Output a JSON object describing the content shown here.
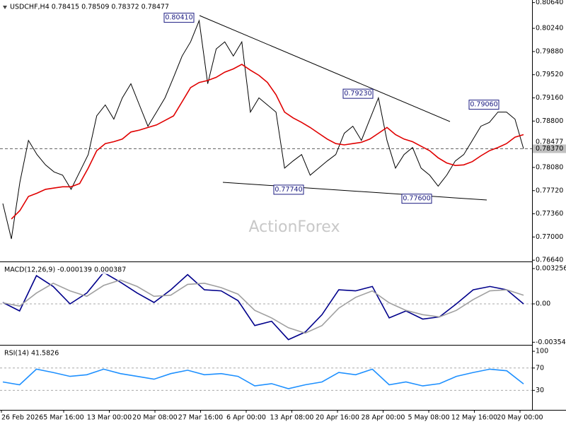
{
  "chart_data": [
    {
      "type": "line",
      "title": "USDCHF,H4  0.78415 0.78509 0.78372 0.78477",
      "watermark": "ActionForex",
      "ylim": [
        0.7662,
        0.8068
      ],
      "yticks": [
        {
          "value": 0.8064,
          "label": "0.80640"
        },
        {
          "value": 0.8024,
          "label": "0.80240"
        },
        {
          "value": 0.7988,
          "label": "0.79880"
        },
        {
          "value": 0.7952,
          "label": "0.79520"
        },
        {
          "value": 0.7916,
          "label": "0.79160"
        },
        {
          "value": 0.788,
          "label": "0.78800"
        },
        {
          "value": 0.7808,
          "label": "0.78080"
        },
        {
          "value": 0.7772,
          "label": "0.77720"
        },
        {
          "value": 0.7736,
          "label": "0.77360"
        },
        {
          "value": 0.77,
          "label": "0.77000"
        },
        {
          "value": 0.7664,
          "label": "0.76640"
        }
      ],
      "series": [
        {
          "color": "#000000",
          "values": [
            0.7752,
            0.7697,
            0.7785,
            0.785,
            0.7828,
            0.7812,
            0.7801,
            0.7796,
            0.7774,
            0.7801,
            0.7828,
            0.7888,
            0.7905,
            0.7883,
            0.7916,
            0.7938,
            0.7905,
            0.7872,
            0.7894,
            0.7916,
            0.7948,
            0.7981,
            0.8003,
            0.8036,
            0.7938,
            0.7992,
            0.8003,
            0.7981,
            0.8003,
            0.7894,
            0.7916,
            0.7905,
            0.7894,
            0.7807,
            0.7818,
            0.7828,
            0.7796,
            0.7807,
            0.7818,
            0.7828,
            0.7861,
            0.7872,
            0.785,
            0.7883,
            0.7916,
            0.785,
            0.7807,
            0.7828,
            0.7839,
            0.7807,
            0.7796,
            0.7779,
            0.7796,
            0.7818,
            0.7828,
            0.785,
            0.7872,
            0.7878,
            0.7894,
            0.7894,
            0.7883,
            0.7837
          ]
        },
        {
          "color": "#e00000",
          "values": [
            null,
            0.7728,
            0.7741,
            0.7763,
            0.7768,
            0.7774,
            0.7776,
            0.7778,
            0.7778,
            0.7783,
            0.7807,
            0.7834,
            0.7845,
            0.7848,
            0.7852,
            0.7863,
            0.7866,
            0.787,
            0.7874,
            0.7881,
            0.7888,
            0.791,
            0.7932,
            0.794,
            0.7943,
            0.7948,
            0.7956,
            0.7961,
            0.7968,
            0.7959,
            0.7951,
            0.794,
            0.7921,
            0.7894,
            0.7885,
            0.7878,
            0.787,
            0.7861,
            0.7852,
            0.7845,
            0.7843,
            0.7845,
            0.7847,
            0.7852,
            0.7861,
            0.787,
            0.7859,
            0.7852,
            0.7848,
            0.7841,
            0.7834,
            0.7823,
            0.7815,
            0.7811,
            0.7812,
            0.7817,
            0.7826,
            0.7834,
            0.7839,
            0.7845,
            0.7855,
            0.7859
          ]
        }
      ],
      "annotations": [
        {
          "value": 0.8041,
          "label": "0.80410"
        },
        {
          "value": 0.7923,
          "label": "0.79230"
        },
        {
          "value": 0.7774,
          "label": "0.77740"
        },
        {
          "value": 0.776,
          "label": "0.77600"
        },
        {
          "value": 0.7906,
          "label": "0.79060"
        }
      ],
      "price_markers": [
        {
          "value": 0.78477,
          "label": "0.78477"
        },
        {
          "value": 0.7837,
          "label": "0.78370"
        }
      ]
    },
    {
      "type": "line",
      "title": "MACD(12,26,9) -0.000139 0.000387",
      "ylim": [
        -0.00378,
        0.00378
      ],
      "yticks": [
        0.003256,
        {
          "value": 0,
          "label": "0.00"
        },
        -0.00354
      ],
      "levels": [
        0
      ],
      "series": [
        {
          "color": "#00008b",
          "values": [
            0.00013,
            -0.00065,
            0.0026,
            0.0016,
            0,
            0.001,
            0.0029,
            0.002,
            0.001,
            0.00013,
            0.0013,
            0.0027,
            0.0013,
            0.0012,
            0.0003,
            -0.002,
            -0.0016,
            -0.0033,
            -0.0026,
            -0.001,
            0.0013,
            0.0012,
            0.0016,
            -0.0013,
            -0.00065,
            -0.0014,
            -0.0012,
            0,
            0.0013,
            0.0016,
            0.0013,
            0
          ]
        },
        {
          "color": "#a0a0a0",
          "values": [
            0.0001,
            -0.0002,
            0.001,
            0.0019,
            0.0012,
            0.0007,
            0.0017,
            0.0022,
            0.0016,
            0.0007,
            0.0008,
            0.0018,
            0.0019,
            0.0015,
            0.0009,
            -0.0006,
            -0.0013,
            -0.0022,
            -0.0027,
            -0.002,
            -0.0004,
            0.0006,
            0.0012,
            0.0001,
            -0.0006,
            -0.001,
            -0.0012,
            -0.0006,
            0.0004,
            0.0012,
            0.0013,
            0.0008
          ]
        }
      ]
    },
    {
      "type": "line",
      "title": "RSI(14) 41.5826",
      "ylim": [
        -5,
        109
      ],
      "yticks": [
        100,
        70,
        30
      ],
      "levels": [
        70,
        30
      ],
      "series": [
        {
          "color": "#1e90ff",
          "values": [
            45,
            40,
            68,
            62,
            55,
            58,
            68,
            60,
            55,
            50,
            60,
            66,
            58,
            60,
            55,
            38,
            42,
            33,
            40,
            45,
            62,
            58,
            68,
            40,
            45,
            38,
            42,
            55,
            62,
            68,
            65,
            41.5826
          ]
        }
      ]
    }
  ],
  "time_labels": [
    "26 Feb 2026",
    "5 Mar 16:00",
    "13 Mar 00:00",
    "20 Mar 08:00",
    "27 Mar 16:00",
    "6 Apr 00:00",
    "13 Apr 08:00",
    "20 Apr 16:00",
    "28 Apr 00:00",
    "5 May 08:00",
    "12 May 16:00",
    "20 May 00:00"
  ]
}
